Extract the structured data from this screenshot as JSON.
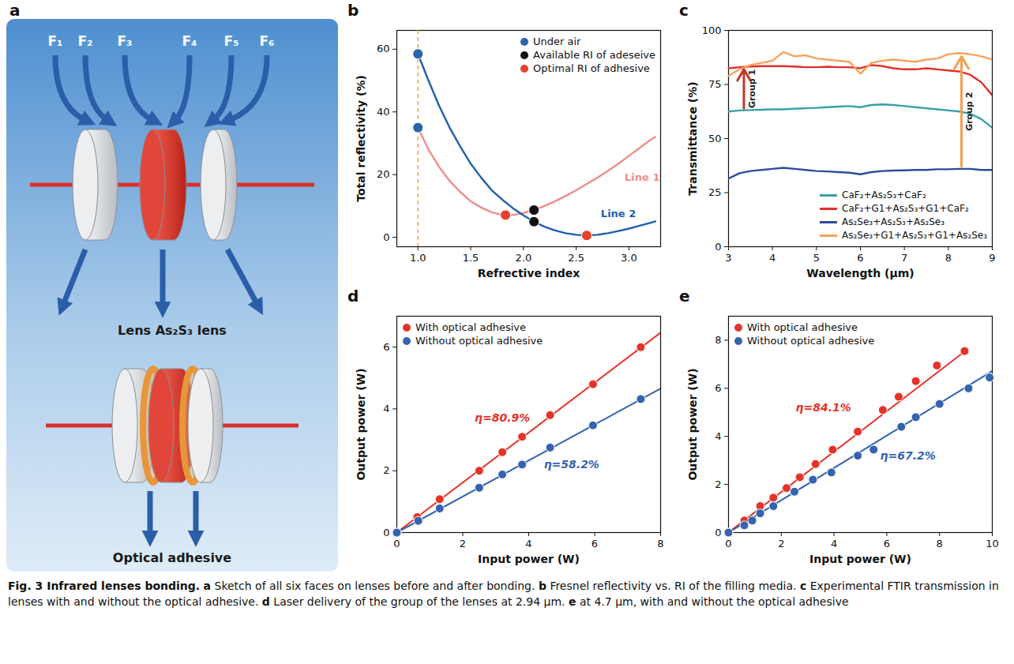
{
  "diagram": {
    "panel": "a",
    "face_labels": [
      "F₁",
      "F₂",
      "F₃",
      "F₄",
      "F₅",
      "F₆"
    ],
    "labels": [
      "Lens As₂S₃ lens",
      "Optical adhesive"
    ]
  },
  "chart_data": [
    {
      "panel": "b",
      "type": "line",
      "xlabel": "Refrective index",
      "ylabel": "Total reflectivity (%)",
      "xlim": [
        0.8,
        3.3
      ],
      "ylim": [
        -3,
        66
      ],
      "xticks": [
        {
          "value": 1,
          "label": "1.0"
        },
        1.5,
        {
          "value": 2,
          "label": "2.0"
        },
        2.5,
        {
          "value": 3,
          "label": "3.0"
        }
      ],
      "yticks": [
        0,
        20,
        40,
        60
      ],
      "grid": false,
      "legend": "top-right",
      "x": [
        1.0,
        1.1,
        1.2,
        1.3,
        1.4,
        1.5,
        1.6,
        1.7,
        1.8,
        1.9,
        2.0,
        2.1,
        2.2,
        2.3,
        2.4,
        2.5,
        2.6,
        2.7,
        2.8,
        2.9,
        3.0,
        3.1,
        3.2,
        3.25
      ],
      "series": [
        {
          "name": "Line 1",
          "color": "#f08c8c",
          "values": [
            35,
            28,
            22.5,
            18,
            14.5,
            11.5,
            9.5,
            8,
            7.1,
            7.1,
            7.8,
            8.7,
            10,
            11.5,
            13.2,
            15,
            17,
            19,
            21.2,
            23.5,
            26,
            28.5,
            31,
            32
          ]
        },
        {
          "name": "Line 2",
          "color": "#1f5fae",
          "values": [
            58.5,
            50,
            42,
            35,
            29,
            23.5,
            19,
            15,
            12,
            9.3,
            7,
            5,
            3.4,
            2.2,
            1.3,
            0.8,
            0.6,
            0.8,
            1.3,
            2,
            2.8,
            3.7,
            4.6,
            5.1
          ]
        },
        {
          "name": "Under air",
          "type": "scatter",
          "marker": "circle",
          "color": "#2a63b0",
          "x": [
            1.0,
            1.0
          ],
          "values": [
            58.5,
            35
          ]
        },
        {
          "name": "Available RI of adeseive",
          "type": "scatter",
          "marker": "circle",
          "color": "#111111",
          "x": [
            2.1,
            2.1
          ],
          "values": [
            8.7,
            5
          ]
        },
        {
          "name": "Optimal RI of adhesive",
          "type": "scatter",
          "marker": "circle",
          "color": "#e8402f",
          "x": [
            1.83,
            2.6
          ],
          "values": [
            7.1,
            0.6
          ]
        }
      ],
      "annotations": [
        {
          "type": "vline",
          "x": 1.0,
          "color": "#f2a33a",
          "line_style": "dashed"
        }
      ]
    },
    {
      "panel": "c",
      "type": "line",
      "xlabel": "Wavelength (μm)",
      "ylabel": "Transmittance (%)",
      "xlim": [
        3,
        9
      ],
      "ylim": [
        0,
        100
      ],
      "xticks": [
        3,
        4,
        5,
        6,
        7,
        8,
        9
      ],
      "yticks": [
        0,
        25,
        50,
        75,
        100
      ],
      "grid": false,
      "legend": "bottom-right",
      "x": [
        3,
        3.25,
        3.5,
        3.75,
        4,
        4.25,
        4.5,
        4.75,
        5,
        5.25,
        5.5,
        5.75,
        6,
        6.25,
        6.5,
        6.75,
        7,
        7.25,
        7.5,
        7.75,
        8,
        8.25,
        8.5,
        8.75,
        9
      ],
      "series": [
        {
          "name": "CaF₂+As₂S₃+CaF₂",
          "color": "#3aa0a8",
          "values": [
            62.5,
            63,
            63.2,
            63.3,
            63.5,
            63.5,
            63.8,
            64,
            64.2,
            64.5,
            64.8,
            65,
            64.5,
            65.5,
            65.8,
            65.5,
            65,
            64.5,
            64,
            63.5,
            63,
            62.5,
            61.5,
            59,
            55
          ]
        },
        {
          "name": "CaF₂+G1+As₂S₃+G1+CaF₂",
          "color": "#e2302a",
          "values": [
            82.5,
            83,
            83.3,
            83.5,
            83.5,
            83.5,
            83.3,
            83,
            83,
            83.2,
            83,
            83,
            82.5,
            84,
            83.5,
            82.5,
            82,
            82,
            82.5,
            82,
            81.5,
            81,
            79.5,
            76,
            70
          ]
        },
        {
          "name": "As₂Se₃+As₂S₃+As₂Se₃",
          "color": "#2c4d9c",
          "values": [
            31.5,
            34,
            35,
            35.5,
            36,
            36.5,
            36,
            35.5,
            35,
            34.8,
            34.5,
            34.2,
            33.5,
            34.5,
            35,
            35.2,
            35.3,
            35.5,
            35.5,
            35.8,
            35.8,
            36,
            36,
            35.5,
            35.5
          ]
        },
        {
          "name": "As₂Se₃+G1+As₂S₃+G1+As₂Se₃",
          "color": "#f6a25c",
          "values": [
            79,
            82,
            84,
            85,
            86,
            90,
            88,
            88.5,
            87,
            86.5,
            86,
            85.5,
            80,
            85,
            86,
            86.5,
            86,
            85.5,
            86.5,
            87,
            89,
            89.5,
            89,
            88,
            86.5
          ]
        }
      ],
      "annotations": [
        {
          "text": "Group 1",
          "x": 3.35,
          "y_from": 64,
          "y_to": 82,
          "color": "#c0392b"
        },
        {
          "text": "Group 2",
          "x": 8.3,
          "y_from": 37,
          "y_to": 88,
          "color": "#f0a050"
        }
      ]
    },
    {
      "panel": "d",
      "type": "scatter",
      "xlabel": "Input power (W)",
      "ylabel": "Output power (W)",
      "xlim": [
        0,
        8
      ],
      "ylim": [
        0,
        7
      ],
      "xticks": [
        0,
        2,
        4,
        6,
        8
      ],
      "yticks": [
        0,
        2,
        4,
        6
      ],
      "grid": false,
      "legend": "top-left",
      "series": [
        {
          "name": "With optical adhesive",
          "color": "#e5332a",
          "marker": "circle",
          "x": [
            0,
            0.62,
            1.3,
            2.5,
            3.2,
            3.8,
            4.65,
            5.95,
            7.4
          ],
          "values": [
            0,
            0.5,
            1.08,
            2,
            2.6,
            3.1,
            3.8,
            4.8,
            6
          ],
          "fit_x": [
            0,
            8
          ],
          "fit_values": [
            0,
            6.47
          ]
        },
        {
          "name": "Without optical adhesive",
          "color": "#3464b0",
          "marker": "circle",
          "x": [
            0,
            0.65,
            1.3,
            2.5,
            3.2,
            3.8,
            4.65,
            5.95,
            7.4
          ],
          "values": [
            0,
            0.38,
            0.78,
            1.45,
            1.88,
            2.2,
            2.75,
            3.47,
            4.32
          ],
          "fit_x": [
            0,
            8
          ],
          "fit_values": [
            0,
            4.66
          ]
        }
      ],
      "annotations": [
        {
          "text": "η=80.9%",
          "x": 3.2,
          "y": 3.7,
          "color": "#e5332a"
        },
        {
          "text": "η=58.2%",
          "x": 5.3,
          "y": 2.2,
          "color": "#3464b0"
        }
      ]
    },
    {
      "panel": "e",
      "type": "scatter",
      "xlabel": "Input power (W)",
      "ylabel": "Output power (W)",
      "xlim": [
        0,
        10
      ],
      "ylim": [
        0,
        9
      ],
      "xticks": [
        0,
        2,
        4,
        6,
        8,
        10
      ],
      "yticks": [
        0,
        2,
        4,
        6,
        8
      ],
      "grid": false,
      "legend": "top-left",
      "series": [
        {
          "name": "With optical adhesive",
          "color": "#e5332a",
          "marker": "circle",
          "x": [
            0,
            0.6,
            1.2,
            1.7,
            2.2,
            2.7,
            3.3,
            3.95,
            4.9,
            5.85,
            6.45,
            7.1,
            7.9,
            8.95
          ],
          "values": [
            0,
            0.5,
            1.1,
            1.45,
            1.85,
            2.3,
            2.85,
            3.45,
            4.2,
            5.1,
            5.65,
            6.3,
            6.95,
            7.55
          ],
          "fit_x": [
            0,
            9
          ],
          "fit_values": [
            0,
            7.57
          ]
        },
        {
          "name": "Without optical adhesive",
          "color": "#3464b0",
          "marker": "circle",
          "x": [
            0,
            0.6,
            0.9,
            1.2,
            1.7,
            2.5,
            3.2,
            3.9,
            4.9,
            5.5,
            6.55,
            7.1,
            8,
            9.1,
            9.9
          ],
          "values": [
            0,
            0.3,
            0.5,
            0.8,
            1.1,
            1.7,
            2.2,
            2.5,
            3.2,
            3.45,
            4.4,
            4.8,
            5.35,
            6,
            6.45
          ],
          "fit_x": [
            0,
            10
          ],
          "fit_values": [
            0,
            6.72
          ]
        }
      ],
      "annotations": [
        {
          "text": "η=84.1%",
          "x": 3.6,
          "y": 5.2,
          "color": "#e5332a"
        },
        {
          "text": "η=67.2%",
          "x": 6.8,
          "y": 3.2,
          "color": "#3464b0"
        }
      ]
    }
  ],
  "caption": {
    "title": "Fig. 3 Infrared lenses bonding.",
    "parts": [
      {
        "label": "a",
        "text": "Sketch of all six faces on lenses before and after bonding."
      },
      {
        "label": "b",
        "text": "Fresnel reflectivity vs. RI of the filling media."
      },
      {
        "label": "c",
        "text": "Experimental FTIR transmission in lenses with and without the optical adhesive."
      },
      {
        "label": "d",
        "text": "Laser delivery of the group of the lenses at 2.94 μm."
      },
      {
        "label": "e",
        "text": "at 4.7 μm, with and without the optical adhesive"
      }
    ]
  }
}
